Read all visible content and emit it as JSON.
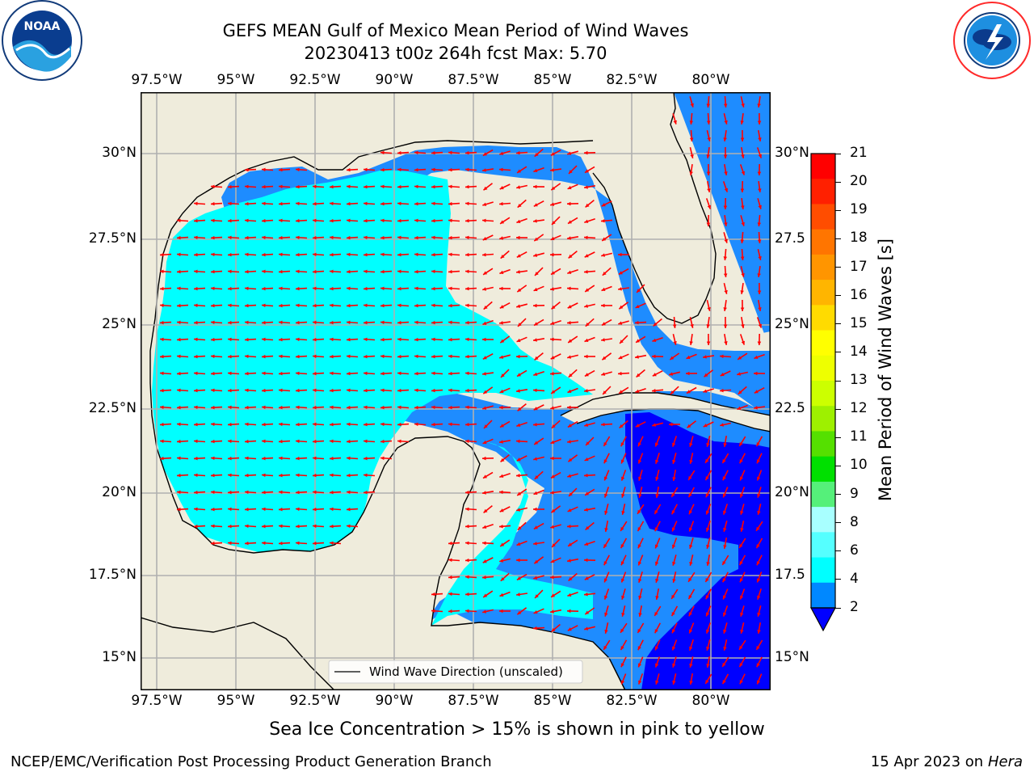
{
  "header": {
    "title_line1": "GEFS MEAN Gulf of Mexico Mean Period of Wind Waves",
    "title_line2": "20230413 t00z 264h fcst   Max: 5.70"
  },
  "logos": {
    "left_logo_text": "NOAA",
    "left_logo_ring_text": "NATIONAL OCEANIC AND ATMOSPHERIC ADMINISTRATION · U.S. DEPARTMENT OF COMMERCE",
    "right_logo_ring_text": "NATIONAL WEATHER SERVICE"
  },
  "map": {
    "lon_labels": [
      "97.5°W",
      "95°W",
      "92.5°W",
      "90°W",
      "87.5°W",
      "85°W",
      "82.5°W",
      "80°W"
    ],
    "lat_labels_left": [
      "30°N",
      "27.5°N",
      "25°N",
      "22.5°N",
      "20°N",
      "17.5°N",
      "15°N"
    ],
    "lat_labels_right": [
      "30°N",
      "27.5",
      "25°N",
      "22.5",
      "20°N",
      "17.5",
      "15°N"
    ],
    "legend_label": "Wind Wave Direction (unscaled)",
    "colors": {
      "land": "#efecdc",
      "coast": "#000000",
      "grid": "#b0b0b0",
      "arrow": "#ff0000"
    }
  },
  "colorbar": {
    "label": "Mean Period of Wind Waves [s]",
    "ticks": [
      "21",
      "20",
      "19",
      "18",
      "17",
      "16",
      "15",
      "14",
      "13",
      "12",
      "11",
      "10",
      "9",
      "8",
      "6",
      "4",
      "2"
    ],
    "colors": [
      "#ff0000",
      "#ff2000",
      "#ff4d00",
      "#ff7500",
      "#ff9500",
      "#ffb500",
      "#ffdb00",
      "#ffff00",
      "#eeff00",
      "#ccff00",
      "#9ef000",
      "#55e000",
      "#00e000",
      "#55f07a",
      "#a8ffff",
      "#55ffff",
      "#00ffff",
      "#0088ff"
    ],
    "extend_color": "#0000ff"
  },
  "footer": {
    "note": "Sea Ice Concentration > 15% is shown in pink to yellow",
    "left": "NCEP/EMC/Verification Post Processing Product Generation Branch",
    "right_prefix": "15 Apr 2023 on ",
    "right_italic": "Hera"
  }
}
